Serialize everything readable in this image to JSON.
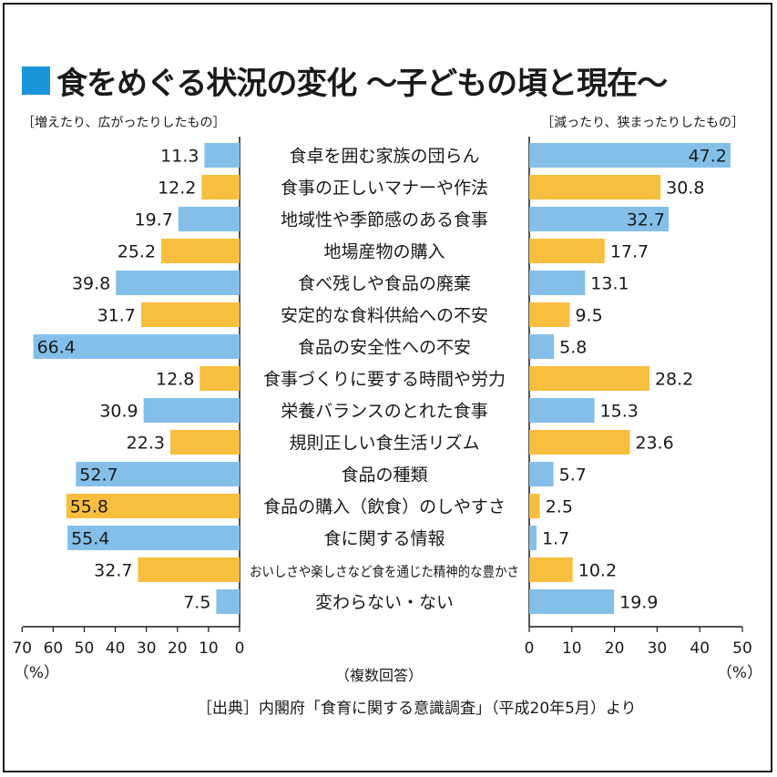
{
  "title": "食をめぐる状況の変化 〜子どもの頃と現在〜",
  "left_header": "［増えたり、広がったりしたもの］",
  "right_header": "［減ったり、狭まったりしたもの］",
  "answer_note": "（複数回答）",
  "source": "［出典］内閣府「食育に関する意識調査」（平成20年5月）より",
  "colors": {
    "blue": "#84bfe9",
    "orange": "#f8be3d",
    "title_square": "#1b95d9",
    "text": "#1a1a1a"
  },
  "chart_data": {
    "type": "bar",
    "orientation": "horizontal-butterfly",
    "categories": [
      "食卓を囲む家族の団らん",
      "食事の正しいマナーや作法",
      "地域性や季節感のある食事",
      "地場産物の購入",
      "食べ残しや食品の廃棄",
      "安定的な食料供給への不安",
      "食品の安全性への不安",
      "食事づくりに要する時間や労力",
      "栄養バランスのとれた食事",
      "規則正しい食生活リズム",
      "食品の種類",
      "食品の購入（飲食）のしやすさ",
      "食に関する情報",
      "おいしさや楽しさなど食を通じた精神的な豊かさ",
      "変わらない・ない"
    ],
    "bar_colors": [
      "blue",
      "orange",
      "blue",
      "orange",
      "blue",
      "orange",
      "blue",
      "orange",
      "blue",
      "orange",
      "blue",
      "orange",
      "blue",
      "orange",
      "blue"
    ],
    "left": {
      "values": [
        11.3,
        12.2,
        19.7,
        25.2,
        39.8,
        31.7,
        66.4,
        12.8,
        30.9,
        22.3,
        52.7,
        55.8,
        55.4,
        32.7,
        7.5
      ],
      "labels": [
        "11.3",
        "12.2",
        "19.7",
        "25.2",
        "39.8",
        "31.7",
        "66.4",
        "12.8",
        "30.9",
        "22.3",
        "52.7",
        "55.8",
        "55.4",
        "32.7",
        "7.5"
      ],
      "xlim": [
        0,
        70
      ],
      "ticks": [
        "70",
        "60",
        "50",
        "40",
        "30",
        "20",
        "10",
        "0"
      ],
      "unit": "（%）"
    },
    "right": {
      "values": [
        47.2,
        30.8,
        32.7,
        17.7,
        13.1,
        9.5,
        5.8,
        28.2,
        15.3,
        23.6,
        5.7,
        2.5,
        1.7,
        10.2,
        19.9
      ],
      "labels": [
        "47.2",
        "30.8",
        "32.7",
        "17.7",
        "13.1",
        "9.5",
        "5.8",
        "28.2",
        "15.3",
        "23.6",
        "5.7",
        "2.5",
        "1.7",
        "10.2",
        "19.9"
      ],
      "xlim": [
        0,
        50
      ],
      "ticks": [
        "0",
        "10",
        "20",
        "30",
        "40",
        "50"
      ],
      "unit": "（%）"
    }
  }
}
